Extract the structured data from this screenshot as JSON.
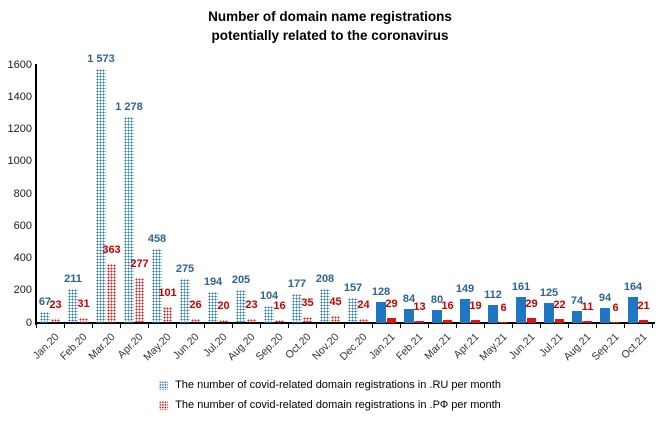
{
  "chart_data": {
    "type": "bar",
    "title_line1": "Number of domain name registrations",
    "title_line2": "potentially related to the coronavirus",
    "categories": [
      "Jan.20",
      "Feb.20",
      "Mar.20",
      "Apr.20",
      "May.20",
      "Jun.20",
      "Jul.20",
      "Aug.20",
      "Sep.20",
      "Oct.20",
      "Nov.20",
      "Dec.20",
      "Jan.21",
      "Feb.21",
      "Mar.21",
      "Apr.21",
      "May.21",
      "Jun.21",
      "Jul.21",
      "Aug.21",
      "Sep.21",
      "Oct.21"
    ],
    "bar_fill_styles": [
      "dotted",
      "dotted",
      "dotted",
      "dotted",
      "dotted",
      "dotted",
      "dotted",
      "dotted",
      "dotted",
      "dotted",
      "dotted",
      "dotted",
      "solid",
      "solid",
      "solid",
      "solid",
      "solid",
      "solid",
      "solid",
      "solid",
      "solid",
      "solid"
    ],
    "series": [
      {
        "name": "The number of covid-related domain registrations in .RU per month",
        "color": "#1F76C2",
        "label_color": "#2C6496",
        "values": [
          67,
          211,
          1573,
          1278,
          458,
          275,
          194,
          205,
          104,
          177,
          208,
          157,
          128,
          84,
          80,
          149,
          112,
          161,
          125,
          74,
          94,
          164
        ]
      },
      {
        "name": "The number of covid-related domain registrations in .РФ per month",
        "color": "#DE1414",
        "label_color": "#C80000",
        "values": [
          23,
          31,
          363,
          277,
          101,
          26,
          20,
          23,
          16,
          35,
          45,
          24,
          29,
          13,
          16,
          19,
          6,
          29,
          22,
          11,
          6,
          21
        ]
      }
    ],
    "ylim": [
      0,
      1600
    ],
    "yticks": [
      0,
      200,
      400,
      600,
      800,
      1000,
      1200,
      1400,
      1600
    ],
    "grid": false,
    "legend_position": "bottom",
    "axis_color": "#000000"
  }
}
